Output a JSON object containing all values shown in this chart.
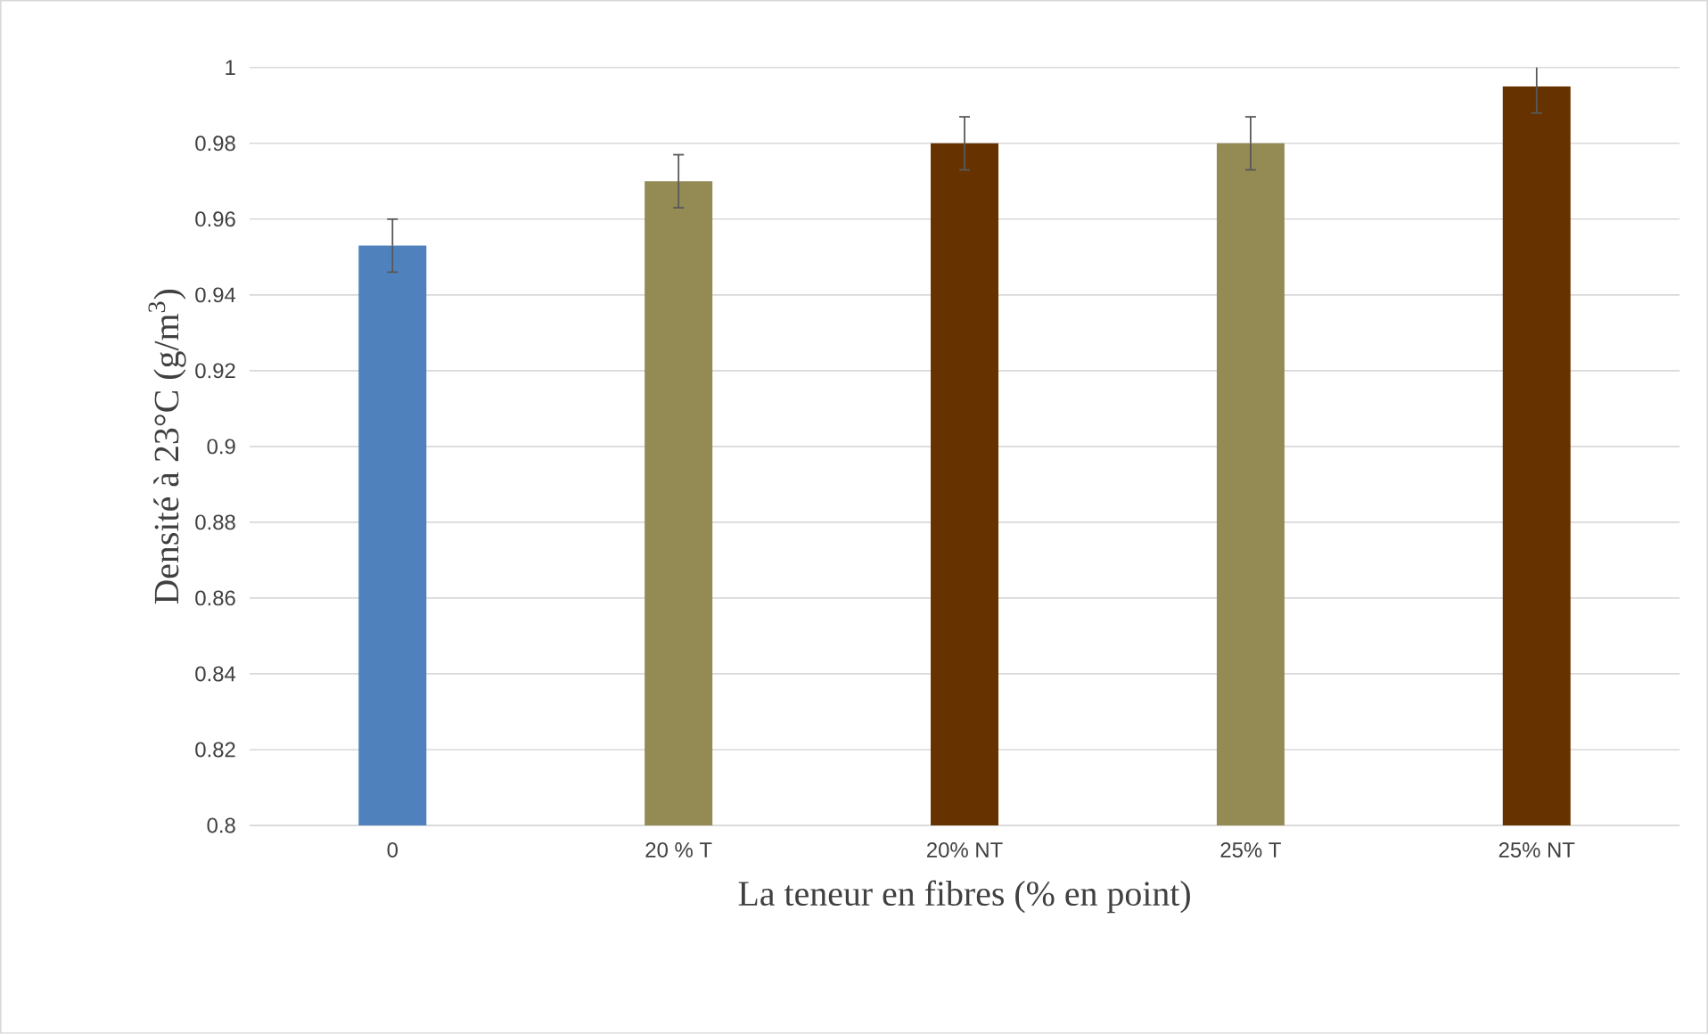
{
  "chart_data": {
    "type": "bar",
    "xlabel": "La teneur en fibres (% en point)",
    "ylabel": "Densité à 23°C (g/m$^{3}$)",
    "categories": [
      "0",
      "20 % T",
      "20% NT",
      "25% T",
      "25% NT"
    ],
    "values": [
      0.953,
      0.97,
      0.98,
      0.98,
      0.995
    ],
    "errors": [
      0.007,
      0.007,
      0.007,
      0.007,
      0.007
    ],
    "colors": [
      "#4f81bd",
      "#948a54",
      "#663300",
      "#948a54",
      "#663300"
    ],
    "ylim": [
      0.8,
      1
    ],
    "yticks": [
      0.8,
      0.82,
      0.84,
      0.86,
      0.88,
      0.9,
      0.92,
      0.94,
      0.96,
      0.98,
      1
    ],
    "grid": "y"
  }
}
